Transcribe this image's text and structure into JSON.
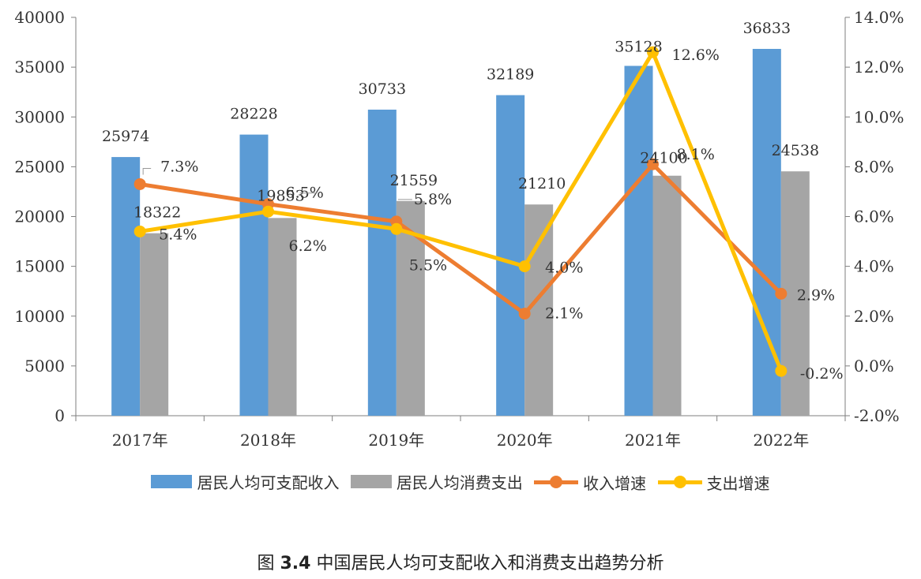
{
  "chart_data": {
    "type": "bar",
    "categories": [
      "2017年",
      "2018年",
      "2019年",
      "2020年",
      "2021年",
      "2022年"
    ],
    "series": [
      {
        "name": "居民人均可支配收入",
        "kind": "bar",
        "axis": "left",
        "color": "#5B9BD5",
        "values": [
          25974,
          28228,
          30733,
          32189,
          35128,
          36833
        ],
        "labels": [
          "25974",
          "28228",
          "30733",
          "32189",
          "35128",
          "36833"
        ]
      },
      {
        "name": "居民人均消费支出",
        "kind": "bar",
        "axis": "left",
        "color": "#A5A5A5",
        "values": [
          18322,
          19853,
          21559,
          21210,
          24100,
          24538
        ],
        "labels": [
          "18322",
          "19853",
          "21559",
          "21210",
          "24100",
          "24538"
        ]
      },
      {
        "name": "收入增速",
        "kind": "line",
        "axis": "right",
        "color": "#ED7D31",
        "values": [
          7.3,
          6.5,
          5.8,
          2.1,
          8.1,
          2.9
        ],
        "labels": [
          "7.3%",
          "6.5%",
          "5.8%",
          "2.1%",
          "8.1%",
          "2.9%"
        ]
      },
      {
        "name": "支出增速",
        "kind": "line",
        "axis": "right",
        "color": "#FFC000",
        "values": [
          5.4,
          6.2,
          5.5,
          4.0,
          12.6,
          -0.2
        ],
        "labels": [
          "5.4%",
          "6.2%",
          "5.5%",
          "4.0%",
          "12.6%",
          "-0.2%"
        ]
      }
    ],
    "y_left": {
      "min": 0,
      "max": 40000,
      "ticks": [
        "0",
        "5000",
        "10000",
        "15000",
        "20000",
        "25000",
        "30000",
        "35000",
        "40000"
      ]
    },
    "y_right": {
      "min": -2.0,
      "max": 14.0,
      "ticks": [
        "-2.0%",
        "0.0%",
        "2.0%",
        "4.0%",
        "6.0%",
        "8.0%",
        "10.0%",
        "12.0%",
        "14.0%"
      ]
    },
    "grid": false,
    "legend_position": "bottom"
  },
  "caption": {
    "prefix": "图",
    "number": "3.4",
    "text": "中国居民人均可支配收入和消费支出趋势分析"
  }
}
